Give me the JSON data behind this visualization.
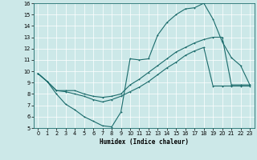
{
  "xlabel": "Humidex (Indice chaleur)",
  "bg_color": "#cce8e8",
  "line_color": "#1a6b6b",
  "xlim": [
    -0.5,
    23.5
  ],
  "ylim": [
    5,
    16
  ],
  "xticks": [
    0,
    1,
    2,
    3,
    4,
    5,
    6,
    7,
    8,
    9,
    10,
    11,
    12,
    13,
    14,
    15,
    16,
    17,
    18,
    19,
    20,
    21,
    22,
    23
  ],
  "yticks": [
    5,
    6,
    7,
    8,
    9,
    10,
    11,
    12,
    13,
    14,
    15,
    16
  ],
  "line1_x": [
    0,
    1,
    2,
    3,
    4,
    5,
    6,
    7,
    8,
    9,
    10,
    11,
    12,
    13,
    14,
    15,
    16,
    17,
    18,
    19,
    20,
    21,
    22,
    23
  ],
  "line1_y": [
    9.8,
    9.1,
    8.0,
    7.1,
    6.6,
    6.0,
    5.6,
    5.2,
    5.1,
    6.4,
    11.1,
    11.0,
    11.1,
    13.2,
    14.3,
    15.0,
    15.5,
    15.6,
    16.0,
    14.6,
    12.6,
    11.2,
    10.5,
    8.8
  ],
  "line2_x": [
    0,
    1,
    2,
    3,
    4,
    5,
    6,
    7,
    8,
    9,
    10,
    11,
    12,
    13,
    14,
    15,
    16,
    17,
    18,
    19,
    20,
    21,
    22,
    23
  ],
  "line2_y": [
    9.8,
    9.1,
    8.3,
    8.3,
    8.3,
    8.0,
    7.8,
    7.7,
    7.8,
    8.0,
    8.8,
    9.3,
    9.9,
    10.5,
    11.1,
    11.7,
    12.1,
    12.5,
    12.8,
    13.0,
    13.0,
    8.8,
    8.8,
    8.8
  ],
  "line3_x": [
    0,
    1,
    2,
    3,
    4,
    5,
    6,
    7,
    8,
    9,
    10,
    11,
    12,
    13,
    14,
    15,
    16,
    17,
    18,
    19,
    20,
    21,
    22,
    23
  ],
  "line3_y": [
    9.8,
    9.1,
    8.3,
    8.2,
    8.0,
    7.8,
    7.5,
    7.3,
    7.5,
    7.8,
    8.2,
    8.6,
    9.1,
    9.7,
    10.3,
    10.8,
    11.4,
    11.8,
    12.1,
    8.7,
    8.7,
    8.7,
    8.7,
    8.7
  ],
  "xlabel_fontsize": 5.5,
  "tick_fontsize": 4.8,
  "marker_size": 2.0,
  "linewidth": 0.8
}
